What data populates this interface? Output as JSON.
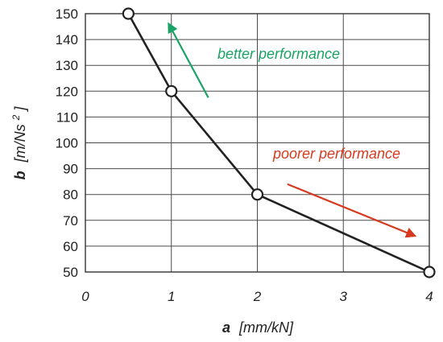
{
  "chart_data": {
    "type": "line",
    "x": [
      0.5,
      1,
      2,
      4
    ],
    "series": [
      {
        "values": [
          150,
          120,
          80,
          50
        ],
        "color": "#222222"
      }
    ],
    "xlim": [
      0,
      4
    ],
    "ylim": [
      50,
      150
    ],
    "xticks": [
      "0",
      "1",
      "2",
      "3",
      "4"
    ],
    "yticks": [
      "50",
      "60",
      "70",
      "80",
      "90",
      "100",
      "110",
      "120",
      "130",
      "140",
      "150"
    ],
    "xlabel": {
      "var": "a",
      "unit": "[mm/kN]"
    },
    "ylabel": {
      "var": "b",
      "unit_prefix": "[m/Ns",
      "unit_exp": "2",
      "unit_suffix": "]"
    },
    "grid": true,
    "annotations": [
      {
        "text": "better performance",
        "color": "#1aa364",
        "arrow_from": [
          1.43,
          117.5
        ],
        "arrow_to": [
          0.97,
          146
        ]
      },
      {
        "text": "poorer performance",
        "color": "#d63a1e",
        "arrow_from": [
          2.35,
          84
        ],
        "arrow_to": [
          3.83,
          64
        ]
      }
    ]
  }
}
